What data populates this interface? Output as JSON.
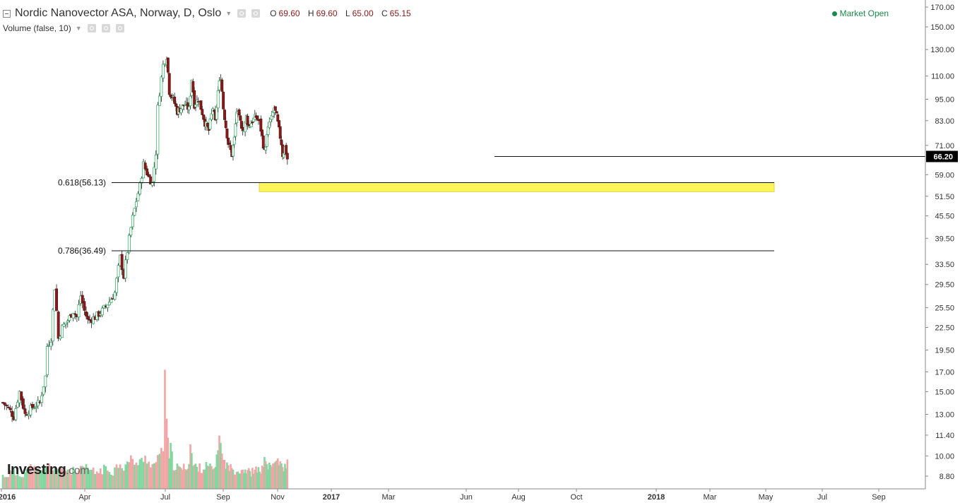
{
  "header": {
    "title": "Nordic Nanovector ASA, Norway, D, Oslo",
    "ohlc": [
      {
        "key": "O",
        "value": "69.60"
      },
      {
        "key": "H",
        "value": "69.60"
      },
      {
        "key": "L",
        "value": "65.00"
      },
      {
        "key": "C",
        "value": "65.15"
      }
    ],
    "volume_label": "Volume (false, 10)",
    "market_status": "Market Open"
  },
  "logo": {
    "name": "Investing",
    "suffix": ".com"
  },
  "colors": {
    "up": "#26a65b",
    "down": "#8b1a1a",
    "vol_up": "#7fd89e",
    "vol_down": "#f2a5a5",
    "highlight": "#fbf55a",
    "axis": "#555555"
  },
  "chart_data": {
    "type": "candlestick",
    "y_scale": "log",
    "y_ticks": [
      "170.00",
      "150.00",
      "130.00",
      "110.00",
      "95.00",
      "83.00",
      "71.00",
      "59.00",
      "51.50",
      "45.50",
      "39.50",
      "33.50",
      "29.50",
      "25.50",
      "22.50",
      "19.50",
      "17.00",
      "15.00",
      "13.00",
      "11.40",
      "10.00",
      "8.80"
    ],
    "x_ticks": [
      "2016",
      "Apr",
      "Jul",
      "Sep",
      "Nov",
      "2017",
      "Mar",
      "Jun",
      "Aug",
      "Oct",
      "2018",
      "Mar",
      "May",
      "Jul",
      "Sep"
    ],
    "last_price": "66.20",
    "fib_levels": [
      {
        "label": "0.618(56.13)",
        "value": 56.13
      },
      {
        "label": "0.786(36.49)",
        "value": 36.49
      }
    ],
    "support_line": 66.2,
    "highlight_zone": [
      53.0,
      56.1
    ],
    "price_path": [
      [
        0,
        14
      ],
      [
        3,
        13.5
      ],
      [
        6,
        12.8
      ],
      [
        9,
        15
      ],
      [
        12,
        13
      ],
      [
        16,
        13.6
      ],
      [
        20,
        14
      ],
      [
        23,
        16.5
      ],
      [
        24,
        20
      ],
      [
        26,
        21
      ],
      [
        28,
        29
      ],
      [
        30,
        21
      ],
      [
        32,
        22.5
      ],
      [
        35,
        23.5
      ],
      [
        38,
        25
      ],
      [
        40,
        24
      ],
      [
        42,
        27.5
      ],
      [
        44,
        25
      ],
      [
        46,
        23.5
      ],
      [
        50,
        24
      ],
      [
        54,
        25
      ],
      [
        58,
        26.5
      ],
      [
        61,
        28
      ],
      [
        64,
        35
      ],
      [
        66,
        31
      ],
      [
        68,
        36.5
      ],
      [
        71,
        45
      ],
      [
        73,
        50
      ],
      [
        75,
        55
      ],
      [
        77,
        63
      ],
      [
        80,
        58
      ],
      [
        82,
        56
      ],
      [
        84,
        68
      ],
      [
        85,
        90
      ],
      [
        88,
        118
      ],
      [
        90,
        125
      ],
      [
        92,
        100
      ],
      [
        95,
        95
      ],
      [
        98,
        88
      ],
      [
        101,
        90
      ],
      [
        104,
        92
      ],
      [
        107,
        89
      ],
      [
        109,
        108
      ],
      [
        111,
        92
      ],
      [
        114,
        95
      ],
      [
        116,
        90
      ],
      [
        119,
        82
      ],
      [
        122,
        78
      ],
      [
        125,
        90
      ],
      [
        127,
        82
      ],
      [
        129,
        100
      ],
      [
        131,
        110
      ],
      [
        133,
        90
      ],
      [
        135,
        80
      ],
      [
        137,
        72
      ],
      [
        140,
        67
      ],
      [
        142,
        74
      ],
      [
        144,
        88
      ],
      [
        147,
        82
      ],
      [
        150,
        78
      ],
      [
        152,
        85
      ],
      [
        154,
        80
      ],
      [
        157,
        83
      ],
      [
        160,
        85
      ],
      [
        163,
        82
      ],
      [
        165,
        75
      ],
      [
        167,
        68
      ],
      [
        169,
        75
      ],
      [
        171,
        82
      ],
      [
        173,
        84
      ],
      [
        175,
        90
      ],
      [
        177,
        85
      ],
      [
        179,
        78
      ],
      [
        181,
        72
      ],
      [
        182,
        67
      ],
      [
        184,
        70
      ],
      [
        185,
        68
      ],
      [
        186,
        65.2
      ]
    ],
    "volume_path": [
      [
        0,
        8.8
      ],
      [
        5,
        9.0
      ],
      [
        10,
        8.9
      ],
      [
        15,
        9.3
      ],
      [
        20,
        9.0
      ],
      [
        25,
        9.4
      ],
      [
        30,
        9.1
      ],
      [
        35,
        9.2
      ],
      [
        40,
        9.0
      ],
      [
        45,
        9.3
      ],
      [
        50,
        9.0
      ],
      [
        55,
        9.2
      ],
      [
        60,
        9.1
      ],
      [
        64,
        9.6
      ],
      [
        66,
        9.3
      ],
      [
        70,
        9.8
      ],
      [
        74,
        9.5
      ],
      [
        78,
        9.9
      ],
      [
        82,
        9.4
      ],
      [
        85,
        9.8
      ],
      [
        88,
        10.5
      ],
      [
        89,
        17.5
      ],
      [
        90,
        12.3
      ],
      [
        92,
        9.8
      ],
      [
        93,
        10.6
      ],
      [
        95,
        9.4
      ],
      [
        98,
        9.3
      ],
      [
        100,
        9.2
      ],
      [
        104,
        9.3
      ],
      [
        107,
        9.5
      ],
      [
        108,
        10.8
      ],
      [
        110,
        9.4
      ],
      [
        114,
        9.3
      ],
      [
        118,
        9.2
      ],
      [
        120,
        9.4
      ],
      [
        122,
        9.3
      ],
      [
        126,
        9.2
      ],
      [
        128,
        9.8
      ],
      [
        130,
        11.5
      ],
      [
        132,
        10.0
      ],
      [
        134,
        9.6
      ],
      [
        136,
        9.4
      ],
      [
        140,
        9.2
      ],
      [
        145,
        9.1
      ],
      [
        150,
        9.2
      ],
      [
        155,
        9.0
      ],
      [
        160,
        9.1
      ],
      [
        165,
        9.2
      ],
      [
        168,
        9.9
      ],
      [
        170,
        9.3
      ],
      [
        175,
        9.5
      ],
      [
        178,
        9.8
      ],
      [
        180,
        9.4
      ],
      [
        183,
        9.2
      ],
      [
        186,
        9.6
      ]
    ]
  }
}
